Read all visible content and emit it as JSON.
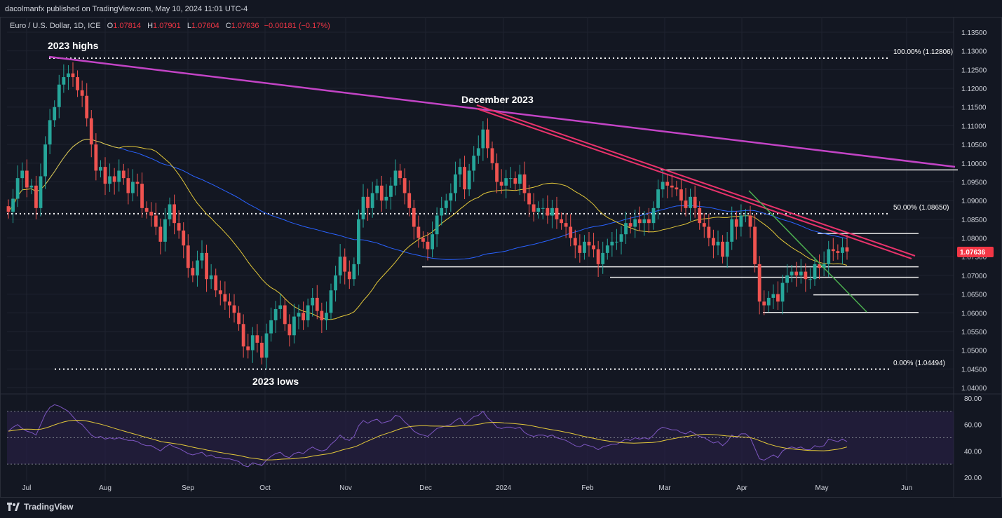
{
  "publisher": "dacolmanfx published on TradingView.com, May 10, 2024 11:01 UTC-4",
  "brand": "TradingView",
  "header": {
    "symbol": "Euro / U.S. Dollar, 1D, ICE",
    "o_label": "O",
    "o_value": "1.07814",
    "h_label": "H",
    "h_value": "1.07901",
    "l_label": "L",
    "l_value": "1.07604",
    "c_label": "C",
    "c_value": "1.07636",
    "change": "−0.00181 (−0.17%)"
  },
  "colors": {
    "background": "#131722",
    "grid": "#1f2330",
    "text": "#d1d4dc",
    "up": "#26a69a",
    "down": "#ef5350",
    "ma_fast": "#e3c83a",
    "ma_slow": "#2962ff",
    "trend_magenta": "#c344c6",
    "trend_red": "#e8336b",
    "trend_green": "#4caf50",
    "rsi": "#7e57c2",
    "rsi_ma": "#e3c83a",
    "rsi_band": "#2a2048"
  },
  "chart_data": [
    {
      "type": "candlestick",
      "title": "Euro / U.S. Dollar, 1D, ICE",
      "y_axis": {
        "ticks": [
          "1.13500",
          "1.13000",
          "1.12500",
          "1.12000",
          "1.11500",
          "1.11000",
          "1.10500",
          "1.10000",
          "1.09500",
          "1.09000",
          "1.08500",
          "1.08000",
          "1.07500",
          "1.07000",
          "1.06500",
          "1.06000",
          "1.05500",
          "1.05000",
          "1.04500",
          "1.04000"
        ],
        "range": [
          1.038,
          1.137
        ]
      },
      "x_axis": {
        "ticks": [
          "Jul",
          "Aug",
          "Sep",
          "Oct",
          "Nov",
          "Dec",
          "2024",
          "Feb",
          "Mar",
          "Apr",
          "May",
          "Jun"
        ]
      },
      "last_price": "1.07636",
      "annotations": {
        "highs_label": "2023 highs",
        "lows_label": "2023 lows",
        "dec_label": "December 2023",
        "fib100": "100.00% (1.12806)",
        "fib50": "50.00% (1.08650)",
        "fib0": "0.00% (1.04494)"
      },
      "levels": [
        1.12806,
        1.0865,
        1.04494,
        1.0982,
        1.0812,
        1.0723,
        1.0695,
        1.0648,
        1.0601
      ],
      "series_close": [
        1.087,
        1.0905,
        1.096,
        1.098,
        1.0935,
        1.094,
        1.088,
        1.0965,
        1.105,
        1.1115,
        1.115,
        1.121,
        1.123,
        1.124,
        1.123,
        1.1195,
        1.118,
        1.112,
        1.105,
        1.098,
        1.099,
        1.0945,
        1.0965,
        1.095,
        1.098,
        1.096,
        1.092,
        1.095,
        1.0945,
        1.088,
        1.087,
        1.086,
        1.083,
        1.079,
        1.085,
        1.089,
        1.084,
        1.082,
        1.078,
        1.072,
        1.07,
        1.074,
        1.076,
        1.069,
        1.07,
        1.066,
        1.065,
        1.063,
        1.062,
        1.06,
        1.057,
        1.051,
        1.05,
        1.054,
        1.052,
        1.048,
        1.0545,
        1.058,
        1.061,
        1.062,
        1.057,
        1.054,
        1.059,
        1.06,
        1.058,
        1.062,
        1.064,
        1.0605,
        1.058,
        1.06,
        1.066,
        1.07,
        1.075,
        1.071,
        1.069,
        1.073,
        1.085,
        1.091,
        1.088,
        1.092,
        1.094,
        1.09,
        1.091,
        1.094,
        1.098,
        1.096,
        1.092,
        1.088,
        1.083,
        1.08,
        1.079,
        1.077,
        1.081,
        1.086,
        1.088,
        1.09,
        1.092,
        1.097,
        1.099,
        1.093,
        1.098,
        1.102,
        1.104,
        1.109,
        1.104,
        1.1,
        1.095,
        1.094,
        1.096,
        1.096,
        1.0945,
        1.097,
        1.092,
        1.089,
        1.087,
        1.088,
        1.088,
        1.086,
        1.088,
        1.085,
        1.084,
        1.083,
        1.08,
        1.078,
        1.076,
        1.079,
        1.078,
        1.077,
        1.073,
        1.076,
        1.078,
        1.079,
        1.079,
        1.081,
        1.084,
        1.083,
        1.085,
        1.084,
        1.085,
        1.084,
        1.088,
        1.093,
        1.095,
        1.094,
        1.0935,
        1.093,
        1.09,
        1.088,
        1.091,
        1.088,
        1.084,
        1.083,
        1.08,
        1.078,
        1.079,
        1.075,
        1.079,
        1.085,
        1.083,
        1.086,
        1.086,
        1.083,
        1.073,
        1.063,
        1.062,
        1.064,
        1.065,
        1.063,
        1.068,
        1.07,
        1.071,
        1.07,
        1.071,
        1.069,
        1.069,
        1.073,
        1.072,
        1.073,
        1.077,
        1.0765,
        1.076,
        1.0775,
        1.0764
      ],
      "rsi": {
        "ticks": [
          "80.00",
          "60.00",
          "40.00",
          "20.00"
        ],
        "range": [
          20,
          80
        ],
        "band": [
          30,
          70
        ],
        "mid": 50,
        "series": [
          55,
          58,
          60,
          57,
          55,
          54,
          52,
          60,
          68,
          73,
          75,
          74,
          72,
          70,
          66,
          62,
          60,
          56,
          52,
          50,
          51,
          49,
          50,
          49,
          50,
          49,
          48,
          48,
          47,
          45,
          44,
          44,
          42,
          40,
          43,
          45,
          43,
          42,
          40,
          38,
          37,
          38,
          39,
          36,
          37,
          35,
          35,
          34,
          34,
          33,
          32,
          29,
          28,
          31,
          30,
          29,
          33,
          36,
          38,
          39,
          36,
          35,
          38,
          39,
          38,
          41,
          43,
          41,
          40,
          41,
          45,
          48,
          52,
          49,
          48,
          51,
          59,
          63,
          61,
          63,
          64,
          61,
          62,
          63,
          67,
          66,
          62,
          59,
          55,
          53,
          52,
          51,
          54,
          57,
          58,
          59,
          60,
          63,
          65,
          60,
          63,
          66,
          67,
          70,
          65,
          62,
          58,
          57,
          58,
          58,
          57,
          58,
          54,
          52,
          51,
          52,
          52,
          51,
          52,
          50,
          49,
          48,
          46,
          44,
          43,
          45,
          44,
          43,
          41,
          43,
          44,
          45,
          45,
          47,
          49,
          48,
          50,
          49,
          50,
          49,
          52,
          56,
          58,
          57,
          56,
          56,
          54,
          53,
          55,
          53,
          51,
          50,
          48,
          46,
          47,
          44,
          47,
          52,
          50,
          53,
          53,
          50,
          42,
          34,
          33,
          35,
          37,
          35,
          40,
          42,
          43,
          42,
          43,
          41,
          41,
          44,
          43,
          44,
          49,
          48,
          47,
          49,
          47
        ],
        "ma": [
          55,
          55.5,
          56,
          56.4,
          56.5,
          56.4,
          56.2,
          56.5,
          57.4,
          58.5,
          59.8,
          61,
          62,
          62.8,
          63.2,
          63.3,
          63.1,
          62.6,
          61.9,
          61,
          60.2,
          59.2,
          58.1,
          57,
          56,
          55,
          54,
          53,
          52,
          51,
          50,
          49.1,
          48.1,
          47,
          46.5,
          46,
          45.5,
          45,
          44.3,
          43.5,
          42.7,
          42,
          41.4,
          40.6,
          40,
          39.3,
          38.7,
          38,
          37.5,
          37,
          36.4,
          35.6,
          34.8,
          34.4,
          33.9,
          33.3,
          33.2,
          33.3,
          33.5,
          33.8,
          33.9,
          34,
          34.3,
          34.7,
          35,
          35.6,
          36.3,
          36.8,
          37.3,
          37.8,
          38.6,
          39.6,
          40.7,
          41.6,
          42.4,
          43.4,
          45,
          46.7,
          48.2,
          49.7,
          51.3,
          52.5,
          53.6,
          54.8,
          56.1,
          57.2,
          58,
          58.6,
          58.9,
          59.1,
          59.1,
          58.9,
          58.8,
          58.8,
          58.7,
          58.6,
          58.6,
          58.9,
          59.3,
          59.3,
          59.5,
          60,
          60.5,
          61.3,
          61.6,
          61.7,
          61.5,
          61.2,
          61,
          60.7,
          60.4,
          60.1,
          59.6,
          59,
          58.3,
          57.6,
          56.9,
          56.2,
          55.7,
          55.1,
          54.4,
          53.7,
          52.9,
          52,
          51.2,
          50.5,
          49.8,
          49.1,
          48.3,
          47.7,
          47.2,
          46.8,
          46.4,
          46.1,
          46,
          45.9,
          46,
          46.1,
          46.3,
          46.4,
          46.8,
          47.5,
          48.3,
          49,
          49.6,
          50.3,
          50.8,
          51.3,
          51.9,
          52.3,
          52.6,
          52.6,
          52.4,
          52.1,
          51.8,
          51.4,
          51.2,
          51,
          50.7,
          50.5,
          50.1,
          49.3,
          48,
          46.6,
          45.3,
          44.3,
          43.3,
          42.6,
          42,
          41.6,
          41.2,
          40.9,
          40.6,
          40.3,
          40.3,
          40.2,
          40.1,
          40.4,
          40.8,
          41.3,
          42.1,
          43
        ]
      }
    }
  ]
}
